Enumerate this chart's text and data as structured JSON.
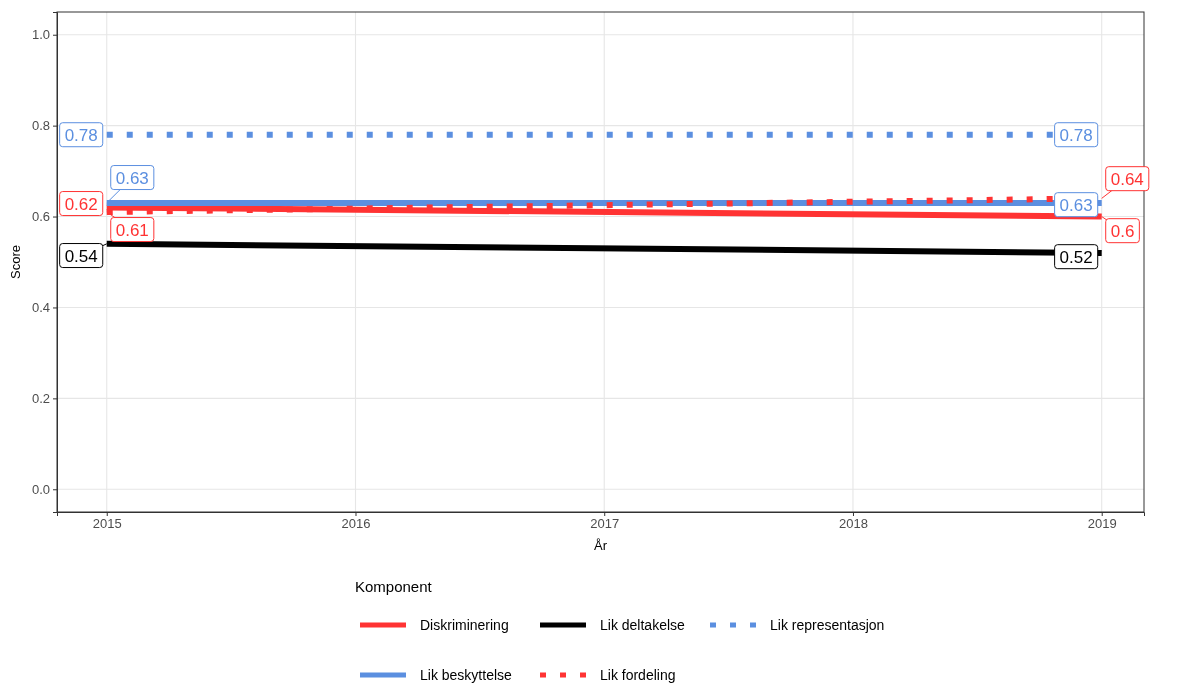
{
  "chart_data": {
    "type": "line",
    "xlabel": "År",
    "ylabel": "Score",
    "legend_title": "Komponent",
    "x": [
      2015,
      2019
    ],
    "xlim": [
      2014.8,
      2019.17
    ],
    "xticks": [
      2015,
      2016,
      2017,
      2018,
      2019
    ],
    "ylim": [
      -0.05,
      1.05
    ],
    "yticks": [
      {
        "value": 0,
        "label": "0.0"
      },
      {
        "value": 0.2,
        "label": "0.2"
      },
      {
        "value": 0.4,
        "label": "0.4"
      },
      {
        "value": 0.6,
        "label": "0.6"
      },
      {
        "value": 0.8,
        "label": "0.8"
      },
      {
        "value": 1,
        "label": "1.0"
      }
    ],
    "grid": true,
    "legend": "bottom",
    "marker": "none",
    "data_labels": true,
    "series": [
      {
        "name": "Diskriminering",
        "color": "#ff3333",
        "line_style": "solid",
        "values": [
          0.62,
          0.6
        ]
      },
      {
        "name": "Lik deltakelse",
        "color": "#000000",
        "line_style": "solid",
        "values": [
          0.54,
          0.52
        ]
      },
      {
        "name": "Lik representasjon",
        "color": "#5b8fe0",
        "line_style": "dotted",
        "values": [
          0.78,
          0.78
        ]
      },
      {
        "name": "Lik beskyttelse",
        "color": "#5b8fe0",
        "line_style": "solid",
        "values": [
          0.63,
          0.63
        ]
      },
      {
        "name": "Lik fordeling",
        "color": "#ff3333",
        "line_style": "dotted",
        "values": [
          0.61,
          0.64
        ]
      }
    ]
  }
}
